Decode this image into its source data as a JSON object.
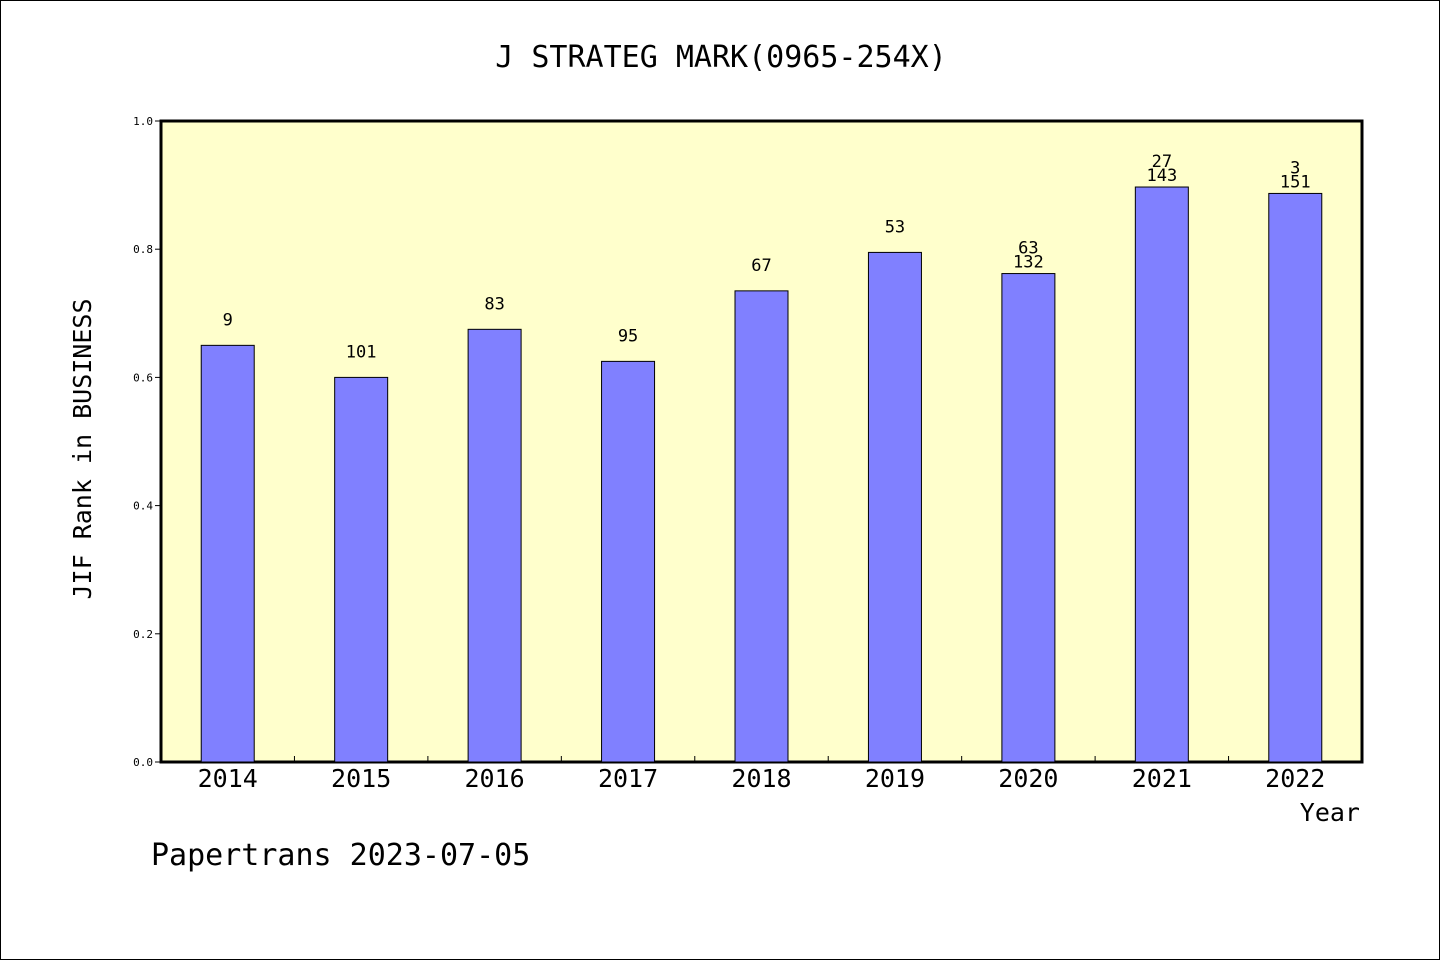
{
  "colors": {
    "plot_background": "#ffffcc",
    "bar_fill": "#8080ff",
    "axis": "#000000"
  },
  "footer": "Papertrans 2023-07-05",
  "chart_data": {
    "type": "bar",
    "title": "J STRATEG MARK(0965-254X)",
    "xlabel": "Year",
    "ylabel": "JIF Rank in BUSINESS",
    "ylim": [
      0,
      1.0
    ],
    "yticks": [
      "0.0",
      "0.2",
      "0.4",
      "0.6",
      "0.8",
      "1.0"
    ],
    "categories": [
      "2014",
      "2015",
      "2016",
      "2017",
      "2018",
      "2019",
      "2020",
      "2021",
      "2022"
    ],
    "values": [
      0.65,
      0.6,
      0.675,
      0.625,
      0.735,
      0.795,
      0.762,
      0.897,
      0.887
    ],
    "labels_upper": [
      "",
      "",
      "",
      "",
      "",
      "",
      "63",
      "27",
      "3"
    ],
    "labels_lower": [
      "9",
      "101",
      "83",
      "95",
      "67",
      "53",
      "132",
      "143",
      "151"
    ],
    "grid": false,
    "legend": "none"
  }
}
